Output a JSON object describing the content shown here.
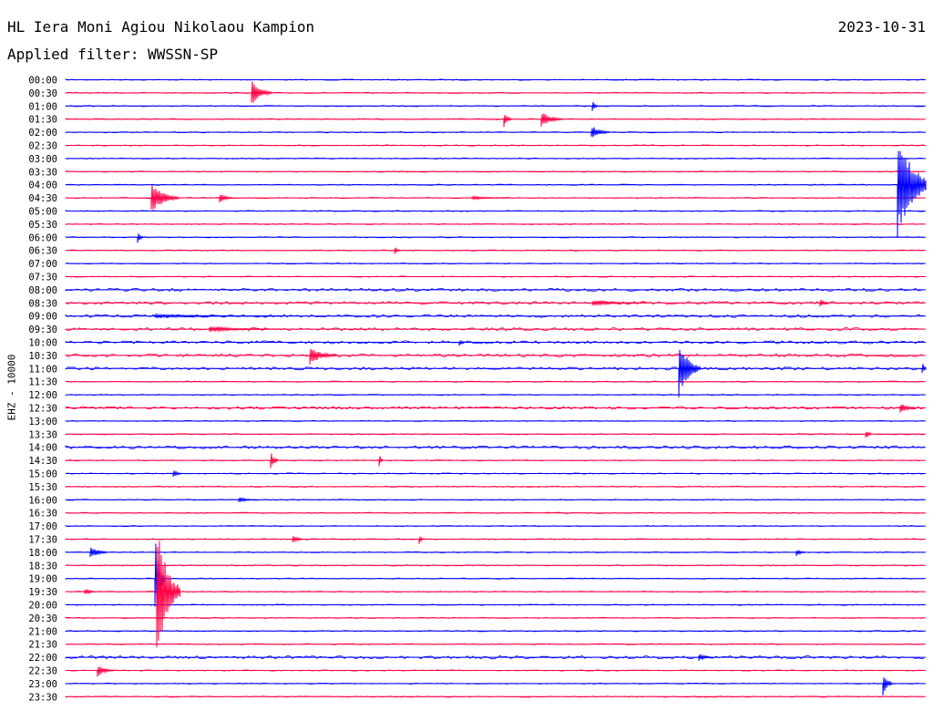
{
  "header": {
    "station": "HL Iera Moni Agiou Nikolaou Kampion",
    "date": "2023-10-31",
    "filter": "Applied filter: WWSSN-SP"
  },
  "axis": {
    "ylabel": "EHZ - 10000"
  },
  "chart_data": {
    "type": "line",
    "title": "HL Iera Moni Agiou Nikolaou Kampion",
    "ylabel": "EHZ - 10000",
    "time_labels": [
      "00:00",
      "00:30",
      "01:00",
      "01:30",
      "02:00",
      "02:30",
      "03:00",
      "03:30",
      "04:00",
      "04:30",
      "05:00",
      "05:30",
      "06:00",
      "06:30",
      "07:00",
      "07:30",
      "08:00",
      "08:30",
      "09:00",
      "09:30",
      "10:00",
      "10:30",
      "11:00",
      "11:30",
      "12:00",
      "12:30",
      "13:00",
      "13:30",
      "14:00",
      "14:30",
      "15:00",
      "15:30",
      "16:00",
      "16:30",
      "17:00",
      "17:30",
      "18:00",
      "18:30",
      "19:00",
      "19:30",
      "20:00",
      "20:30",
      "21:00",
      "21:30",
      "22:00",
      "22:30",
      "23:00",
      "23:30"
    ],
    "colors": {
      "even_trace": "#0000ff",
      "odd_trace": "#ff0044"
    }
  }
}
